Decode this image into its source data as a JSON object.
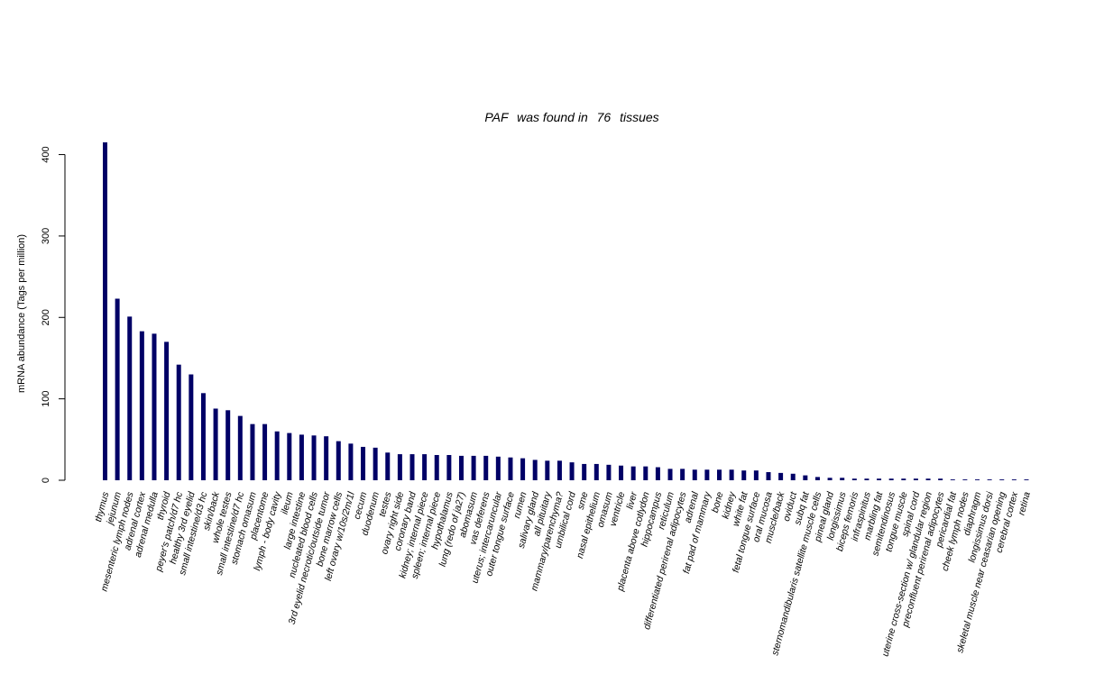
{
  "chart_data": {
    "type": "bar",
    "title": {
      "gene": "PAF",
      "mid": "was found in",
      "count": "76",
      "suffix": "tissues"
    },
    "xlabel": "",
    "ylabel": "mRNA abundance (Tags per million)",
    "ylim": [
      0,
      415
    ],
    "yticks": [
      0,
      100,
      200,
      300,
      400
    ],
    "grid": false,
    "bar_color": "#000066",
    "categories": [
      "thymus",
      "jejunum",
      "mesenteric lymph nodes",
      "adrenal cortex",
      "adrenal medulla",
      "thyroid",
      "peyer's patch/d7 hc",
      "healthy 3rd eyelid",
      "small intestine/d3 hc",
      "skin/back",
      "whole testes",
      "small intestine/d7 hc",
      "stomach omasum",
      "placentome",
      "lymph - body cavity",
      "ileum",
      "large intestine",
      "nucleated blood cells",
      "3rd eyelid necrotic/outside tumor",
      "bone marrow cells",
      "left ovary w/10s/2m/1l",
      "cecum",
      "duodenum",
      "testes",
      "ovary right side",
      "coronary band",
      "kidney; internal piece",
      "spleen; internal piece",
      "hypothalamus",
      "lung (redo of ja27)",
      "abomasum",
      "vas deferens",
      "uterus; intercaruncular",
      "outer tongue surface",
      "rumen",
      "salivary gland",
      "all pituitary",
      "mammary/parenchyma?",
      "umbilical cord",
      "sme",
      "nasal epithelium",
      "omasum",
      "ventricle",
      "liver",
      "placenta above cotlydon",
      "hippocampus",
      "reticulum",
      "differentiated perirenal adipocytes",
      "adrenal",
      "fat pad of mammary",
      "bone",
      "kidney",
      "white fat",
      "fetal tongue surface",
      "oral mucosa",
      "muscle/back",
      "oviduct",
      "subq fat",
      "sternomandibularis satellite muscle cells",
      "pineal gland",
      "longissimus",
      "biceps femoris",
      "infraspinitus",
      "marbling fat",
      "semitendinosus",
      "tongue muscle",
      "spinal cord",
      "uterine cross-section w/ glandular region",
      "preconfluent perirenal adipocytes",
      "pericardial fat",
      "cheek lymph nodes",
      "diaphragm",
      "longissimus dorsi",
      "skeletal muscle near ceasarian opening",
      "cerebral cortex",
      "retina"
    ],
    "values": [
      415,
      223,
      201,
      183,
      180,
      170,
      142,
      130,
      107,
      88,
      86,
      79,
      69,
      69,
      60,
      58,
      56,
      55,
      54,
      48,
      45,
      41,
      40,
      34,
      32,
      32,
      32,
      31,
      31,
      30,
      30,
      30,
      29,
      28,
      27,
      25,
      24,
      24,
      22,
      20,
      20,
      19,
      18,
      17,
      17,
      16,
      14,
      14,
      13,
      13,
      13,
      13,
      12,
      12,
      10,
      9,
      8,
      6,
      4,
      3,
      3,
      2,
      2,
      2,
      2,
      2,
      2,
      2,
      2,
      1,
      1,
      1,
      1,
      1,
      1,
      1
    ]
  }
}
